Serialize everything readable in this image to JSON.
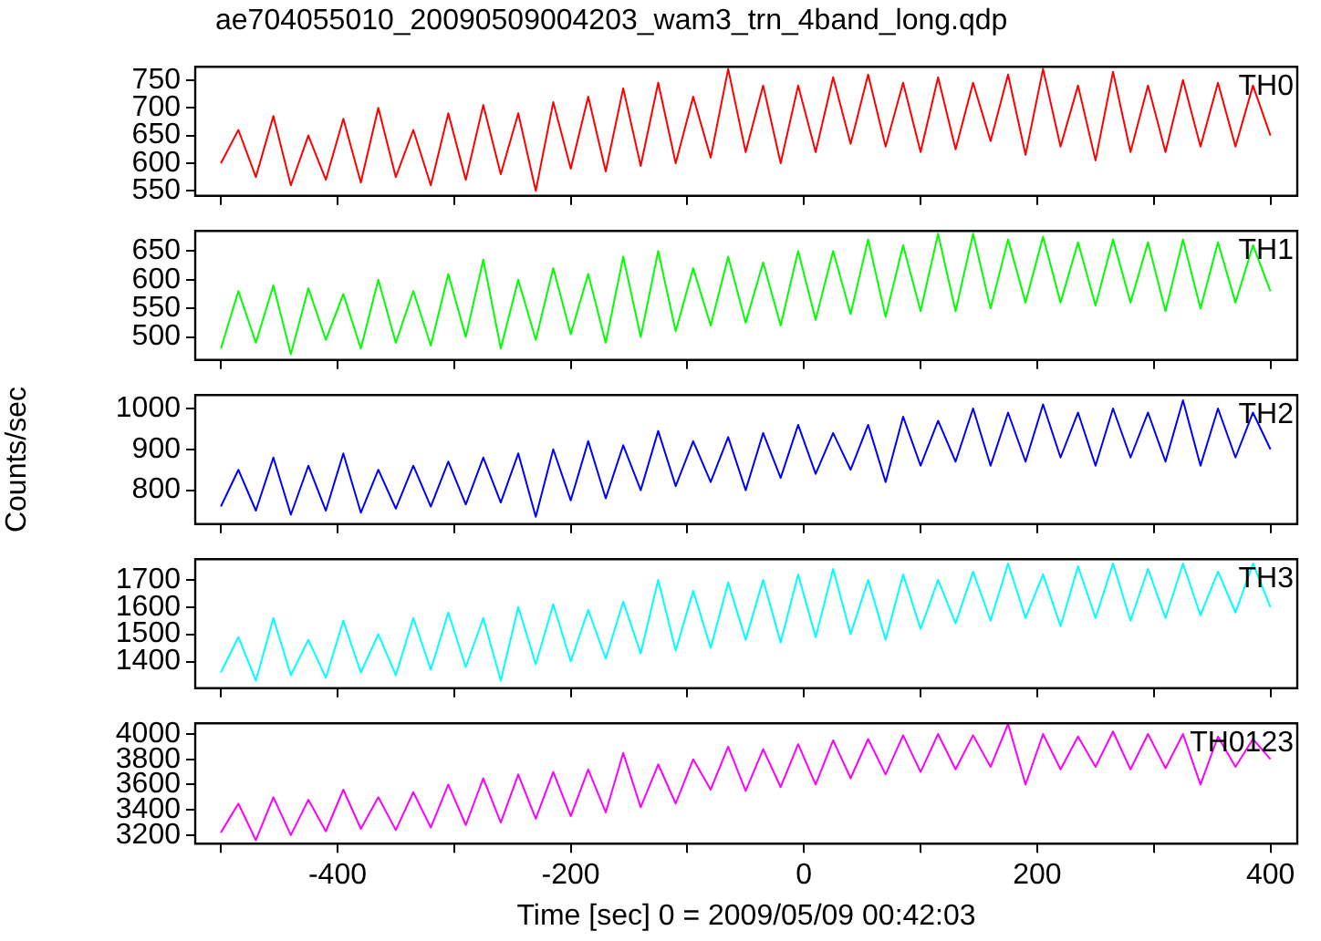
{
  "chart_data": [
    {
      "type": "line",
      "title": "ae704055010_20090509004203_wam3_trn_4band_long.qdp",
      "tick_labels": "y",
      "grid": false,
      "x": [
        -500,
        -485,
        -470,
        -455,
        -440,
        -425,
        -410,
        -395,
        -380,
        -365,
        -350,
        -335,
        -320,
        -305,
        -290,
        -275,
        -260,
        -245,
        -230,
        -215,
        -200,
        -185,
        -170,
        -155,
        -140,
        -125,
        -110,
        -95,
        -80,
        -65,
        -50,
        -35,
        -20,
        -5,
        10,
        25,
        40,
        55,
        70,
        85,
        100,
        115,
        130,
        145,
        160,
        175,
        190,
        205,
        220,
        235,
        250,
        265,
        280,
        295,
        310,
        325,
        340,
        355,
        370,
        385,
        400
      ],
      "xlim": [
        -522,
        423
      ],
      "xticks": [
        {
          "value": -500,
          "label": null
        },
        {
          "value": -400,
          "label": null
        },
        {
          "value": -300,
          "label": null
        },
        {
          "value": -200,
          "label": null
        },
        {
          "value": -100,
          "label": null
        },
        {
          "value": 0,
          "label": null
        },
        {
          "value": 100,
          "label": null
        },
        {
          "value": 200,
          "label": null
        },
        {
          "value": 300,
          "label": null
        },
        {
          "value": 400,
          "label": null
        }
      ],
      "ylim": [
        541,
        774
      ],
      "yticks": [
        550,
        600,
        650,
        700,
        750
      ],
      "series": [
        {
          "name": "TH0",
          "color": "#ff0000",
          "values": [
            600,
            660,
            575,
            685,
            560,
            650,
            570,
            680,
            565,
            700,
            575,
            660,
            560,
            690,
            570,
            705,
            580,
            690,
            550,
            710,
            590,
            720,
            585,
            735,
            595,
            745,
            600,
            720,
            610,
            770,
            620,
            740,
            600,
            740,
            620,
            755,
            635,
            760,
            630,
            745,
            620,
            755,
            625,
            745,
            640,
            760,
            615,
            770,
            630,
            740,
            605,
            765,
            620,
            740,
            620,
            750,
            630,
            745,
            630,
            740,
            650
          ]
        }
      ]
    },
    {
      "type": "line",
      "tick_labels": "y",
      "grid": false,
      "x": [
        -500,
        -485,
        -470,
        -455,
        -440,
        -425,
        -410,
        -395,
        -380,
        -365,
        -350,
        -335,
        -320,
        -305,
        -290,
        -275,
        -260,
        -245,
        -230,
        -215,
        -200,
        -185,
        -170,
        -155,
        -140,
        -125,
        -110,
        -95,
        -80,
        -65,
        -50,
        -35,
        -20,
        -5,
        10,
        25,
        40,
        55,
        70,
        85,
        100,
        115,
        130,
        145,
        160,
        175,
        190,
        205,
        220,
        235,
        250,
        265,
        280,
        295,
        310,
        325,
        340,
        355,
        370,
        385,
        400
      ],
      "xlim": [
        -522,
        423
      ],
      "xticks": [
        {
          "value": -500,
          "label": null
        },
        {
          "value": -400,
          "label": null
        },
        {
          "value": -300,
          "label": null
        },
        {
          "value": -200,
          "label": null
        },
        {
          "value": -100,
          "label": null
        },
        {
          "value": 0,
          "label": null
        },
        {
          "value": 100,
          "label": null
        },
        {
          "value": 200,
          "label": null
        },
        {
          "value": 300,
          "label": null
        },
        {
          "value": 400,
          "label": null
        }
      ],
      "ylim": [
        460,
        685
      ],
      "yticks": [
        500,
        550,
        600,
        650
      ],
      "series": [
        {
          "name": "TH1",
          "color": "#00ff00",
          "values": [
            480,
            580,
            490,
            590,
            470,
            585,
            495,
            575,
            480,
            600,
            490,
            580,
            485,
            610,
            500,
            635,
            480,
            600,
            495,
            620,
            505,
            610,
            490,
            640,
            500,
            650,
            510,
            620,
            520,
            640,
            525,
            630,
            520,
            650,
            530,
            650,
            540,
            670,
            535,
            660,
            545,
            680,
            545,
            680,
            550,
            670,
            560,
            675,
            560,
            665,
            555,
            670,
            560,
            665,
            545,
            670,
            550,
            665,
            560,
            660,
            580
          ]
        }
      ]
    },
    {
      "type": "line",
      "tick_labels": "y",
      "grid": false,
      "ylabel": "Counts/sec",
      "x": [
        -500,
        -485,
        -470,
        -455,
        -440,
        -425,
        -410,
        -395,
        -380,
        -365,
        -350,
        -335,
        -320,
        -305,
        -290,
        -275,
        -260,
        -245,
        -230,
        -215,
        -200,
        -185,
        -170,
        -155,
        -140,
        -125,
        -110,
        -95,
        -80,
        -65,
        -50,
        -35,
        -20,
        -5,
        10,
        25,
        40,
        55,
        70,
        85,
        100,
        115,
        130,
        145,
        160,
        175,
        190,
        205,
        220,
        235,
        250,
        265,
        280,
        295,
        310,
        325,
        340,
        355,
        370,
        385,
        400
      ],
      "xlim": [
        -522,
        423
      ],
      "xticks": [
        {
          "value": -500,
          "label": null
        },
        {
          "value": -400,
          "label": null
        },
        {
          "value": -300,
          "label": null
        },
        {
          "value": -200,
          "label": null
        },
        {
          "value": -100,
          "label": null
        },
        {
          "value": 0,
          "label": null
        },
        {
          "value": 100,
          "label": null
        },
        {
          "value": 200,
          "label": null
        },
        {
          "value": 300,
          "label": null
        },
        {
          "value": 400,
          "label": null
        }
      ],
      "ylim": [
        717,
        1033
      ],
      "yticks": [
        800,
        900,
        1000
      ],
      "series": [
        {
          "name": "TH2",
          "color": "#0000ff",
          "values": [
            760,
            850,
            750,
            880,
            740,
            860,
            750,
            890,
            745,
            850,
            755,
            860,
            760,
            870,
            765,
            880,
            770,
            890,
            735,
            900,
            775,
            920,
            780,
            910,
            800,
            945,
            810,
            920,
            820,
            930,
            800,
            940,
            830,
            960,
            840,
            940,
            850,
            960,
            820,
            980,
            860,
            970,
            870,
            1000,
            860,
            990,
            870,
            1010,
            880,
            990,
            860,
            1000,
            880,
            990,
            870,
            1020,
            860,
            1000,
            880,
            990,
            900
          ]
        }
      ]
    },
    {
      "type": "line",
      "tick_labels": "y",
      "grid": false,
      "x": [
        -500,
        -485,
        -470,
        -455,
        -440,
        -425,
        -410,
        -395,
        -380,
        -365,
        -350,
        -335,
        -320,
        -305,
        -290,
        -275,
        -260,
        -245,
        -230,
        -215,
        -200,
        -185,
        -170,
        -155,
        -140,
        -125,
        -110,
        -95,
        -80,
        -65,
        -50,
        -35,
        -20,
        -5,
        10,
        25,
        40,
        55,
        70,
        85,
        100,
        115,
        130,
        145,
        160,
        175,
        190,
        205,
        220,
        235,
        250,
        265,
        280,
        295,
        310,
        325,
        340,
        355,
        370,
        385,
        400
      ],
      "xlim": [
        -522,
        423
      ],
      "xticks": [
        {
          "value": -500,
          "label": null
        },
        {
          "value": -400,
          "label": null
        },
        {
          "value": -300,
          "label": null
        },
        {
          "value": -200,
          "label": null
        },
        {
          "value": -100,
          "label": null
        },
        {
          "value": 0,
          "label": null
        },
        {
          "value": 100,
          "label": null
        },
        {
          "value": 200,
          "label": null
        },
        {
          "value": 300,
          "label": null
        },
        {
          "value": 400,
          "label": null
        }
      ],
      "ylim": [
        1302,
        1776
      ],
      "yticks": [
        1400,
        1500,
        1600,
        1700
      ],
      "series": [
        {
          "name": "TH3",
          "color": "#00ffff",
          "values": [
            1360,
            1490,
            1330,
            1560,
            1350,
            1480,
            1340,
            1550,
            1360,
            1500,
            1350,
            1560,
            1370,
            1580,
            1380,
            1560,
            1330,
            1600,
            1390,
            1610,
            1400,
            1590,
            1410,
            1620,
            1430,
            1700,
            1440,
            1660,
            1450,
            1690,
            1480,
            1700,
            1470,
            1720,
            1490,
            1740,
            1500,
            1700,
            1480,
            1720,
            1520,
            1700,
            1540,
            1730,
            1550,
            1760,
            1560,
            1720,
            1530,
            1750,
            1560,
            1760,
            1550,
            1740,
            1560,
            1760,
            1570,
            1730,
            1580,
            1760,
            1600
          ]
        }
      ]
    },
    {
      "type": "line",
      "grid": false,
      "xlabel": "Time [sec] 0 = 2009/05/09 00:42:03",
      "x": [
        -500,
        -485,
        -470,
        -455,
        -440,
        -425,
        -410,
        -395,
        -380,
        -365,
        -350,
        -335,
        -320,
        -305,
        -290,
        -275,
        -260,
        -245,
        -230,
        -215,
        -200,
        -185,
        -170,
        -155,
        -140,
        -125,
        -110,
        -95,
        -80,
        -65,
        -50,
        -35,
        -20,
        -5,
        10,
        25,
        40,
        55,
        70,
        85,
        100,
        115,
        130,
        145,
        160,
        175,
        190,
        205,
        220,
        235,
        250,
        265,
        280,
        295,
        310,
        325,
        340,
        355,
        370,
        385,
        400
      ],
      "xlim": [
        -522,
        423
      ],
      "xticks": [
        {
          "value": -500,
          "label": null
        },
        -400,
        {
          "value": -300,
          "label": null
        },
        -200,
        {
          "value": -100,
          "label": null
        },
        0,
        {
          "value": 100,
          "label": null
        },
        200,
        {
          "value": 300,
          "label": null
        },
        400
      ],
      "ylim": [
        3133,
        4085
      ],
      "yticks": [
        3200,
        3400,
        3600,
        3800,
        4000
      ],
      "series": [
        {
          "name": "TH0123",
          "color": "#ff00ff",
          "values": [
            3220,
            3450,
            3160,
            3500,
            3200,
            3480,
            3230,
            3560,
            3250,
            3500,
            3240,
            3540,
            3260,
            3600,
            3280,
            3650,
            3300,
            3680,
            3330,
            3700,
            3350,
            3720,
            3380,
            3850,
            3420,
            3760,
            3450,
            3800,
            3560,
            3900,
            3550,
            3880,
            3580,
            3920,
            3600,
            3950,
            3650,
            3960,
            3680,
            3990,
            3700,
            4000,
            3720,
            3990,
            3740,
            4080,
            3600,
            4000,
            3720,
            3980,
            3740,
            4020,
            3720,
            4000,
            3730,
            4000,
            3600,
            3980,
            3740,
            3960,
            3800
          ]
        }
      ]
    }
  ]
}
